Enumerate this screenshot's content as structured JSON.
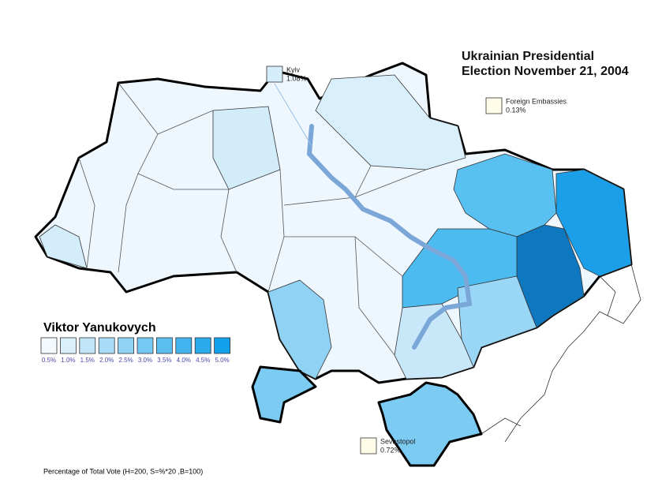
{
  "title": [
    "Ukrainian Presidential",
    "Election November 21, 2004"
  ],
  "legend": {
    "title": "Viktor Yanukovych",
    "items": [
      {
        "label": "0.5%",
        "color": "#f4f9fd"
      },
      {
        "label": "1.0%",
        "color": "#d9effb"
      },
      {
        "label": "1.5%",
        "color": "#c2e6f8"
      },
      {
        "label": "2.0%",
        "color": "#a8dcf6"
      },
      {
        "label": "2.5%",
        "color": "#8fd2f4"
      },
      {
        "label": "3.0%",
        "color": "#74c8f2"
      },
      {
        "label": "3.5%",
        "color": "#5bbef0"
      },
      {
        "label": "4.0%",
        "color": "#43b4ee"
      },
      {
        "label": "4.5%",
        "color": "#2aaaeb"
      },
      {
        "label": "5.0%",
        "color": "#11a0e9"
      }
    ]
  },
  "callouts": [
    {
      "name": "Kyiv",
      "value": "1.08%",
      "color": "#d4edfa"
    },
    {
      "name": "Foreign Embassies",
      "value": "0.13%",
      "color": "#fffde8"
    },
    {
      "name": "Sevastopol",
      "value": "0.72%",
      "color": "#fffde8"
    }
  ],
  "footnote": "Percentage of Total Vote (H=200, S=%*20 ,B=100)"
}
